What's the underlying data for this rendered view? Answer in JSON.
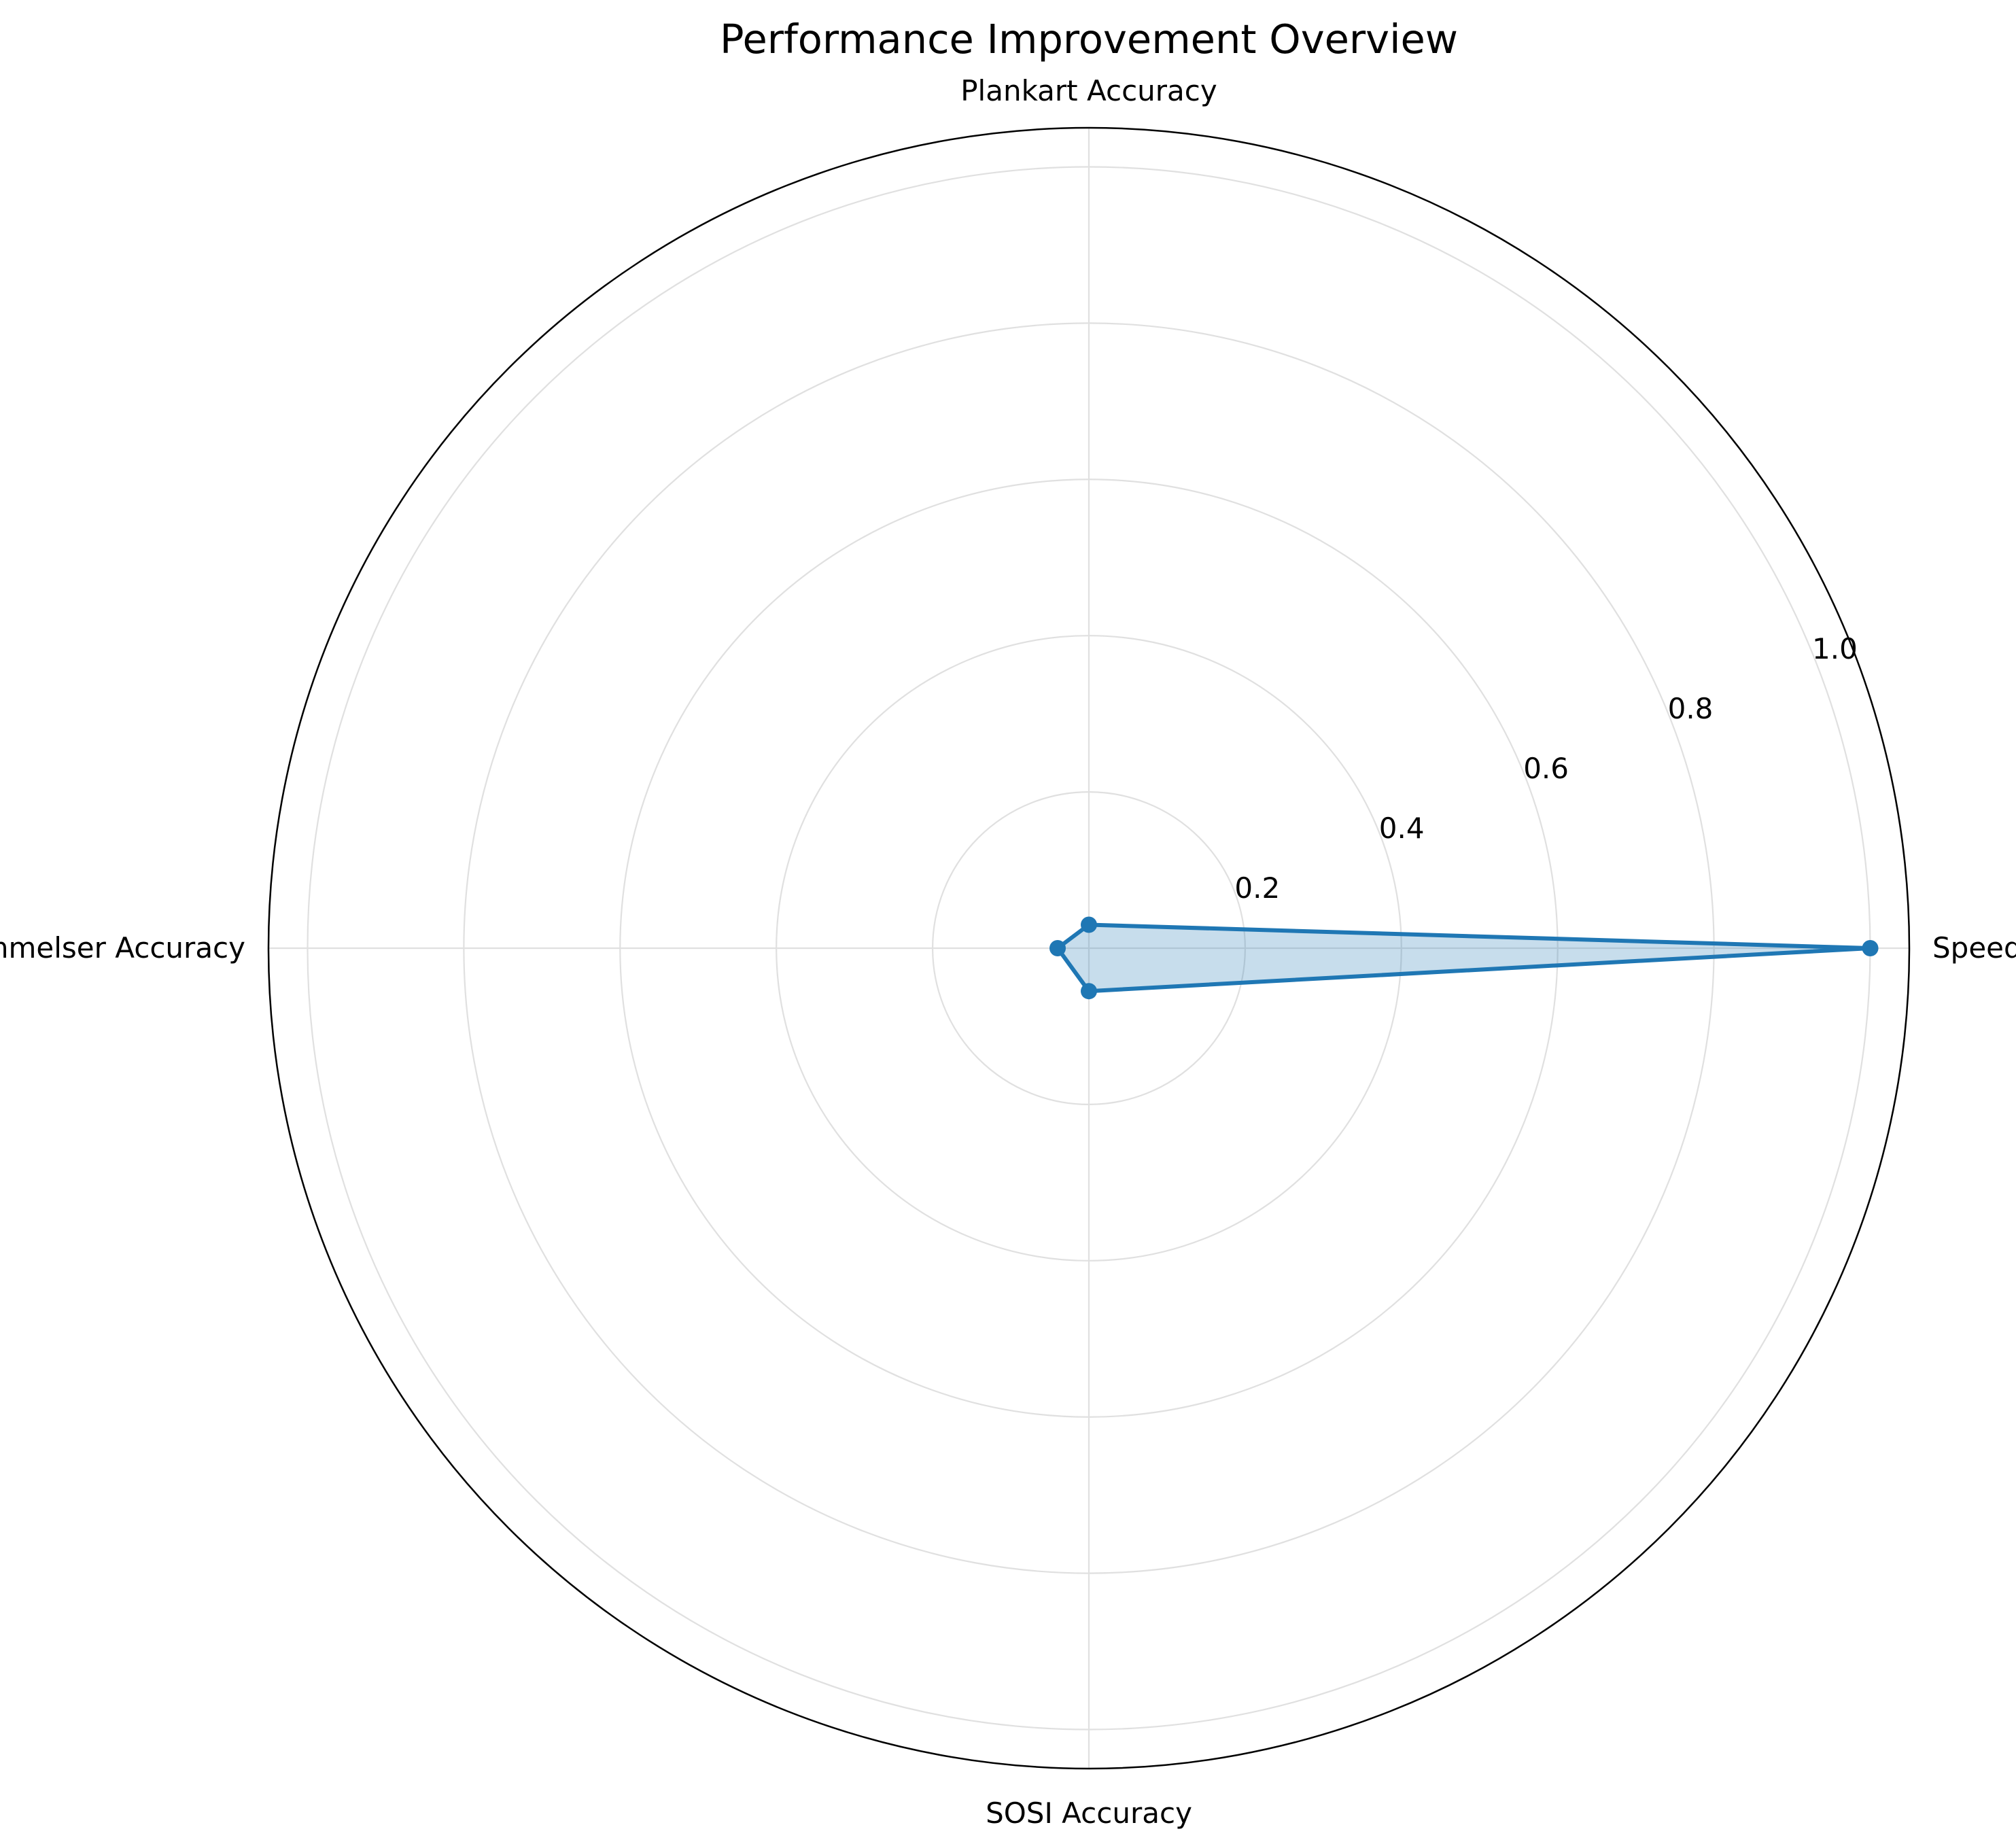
{
  "chart_data": {
    "type": "radar",
    "title": "Performance Improvement Overview",
    "categories": [
      "Speed",
      "Plankart Accuracy",
      "Bestemmelser Accuracy",
      "SOSI Accuracy"
    ],
    "series": [
      {
        "values": [
          1.0,
          0.03,
          0.04,
          0.055
        ],
        "color": "#1f77b4"
      }
    ],
    "radial_ticks": [
      "0.2",
      "0.4",
      "0.6",
      "0.8",
      "1.0"
    ],
    "radial_tick_values": [
      0.2,
      0.4,
      0.6,
      0.8,
      1.0
    ],
    "rlim": [
      0,
      1.05
    ],
    "grid": true,
    "fill_opacity": 0.25
  }
}
